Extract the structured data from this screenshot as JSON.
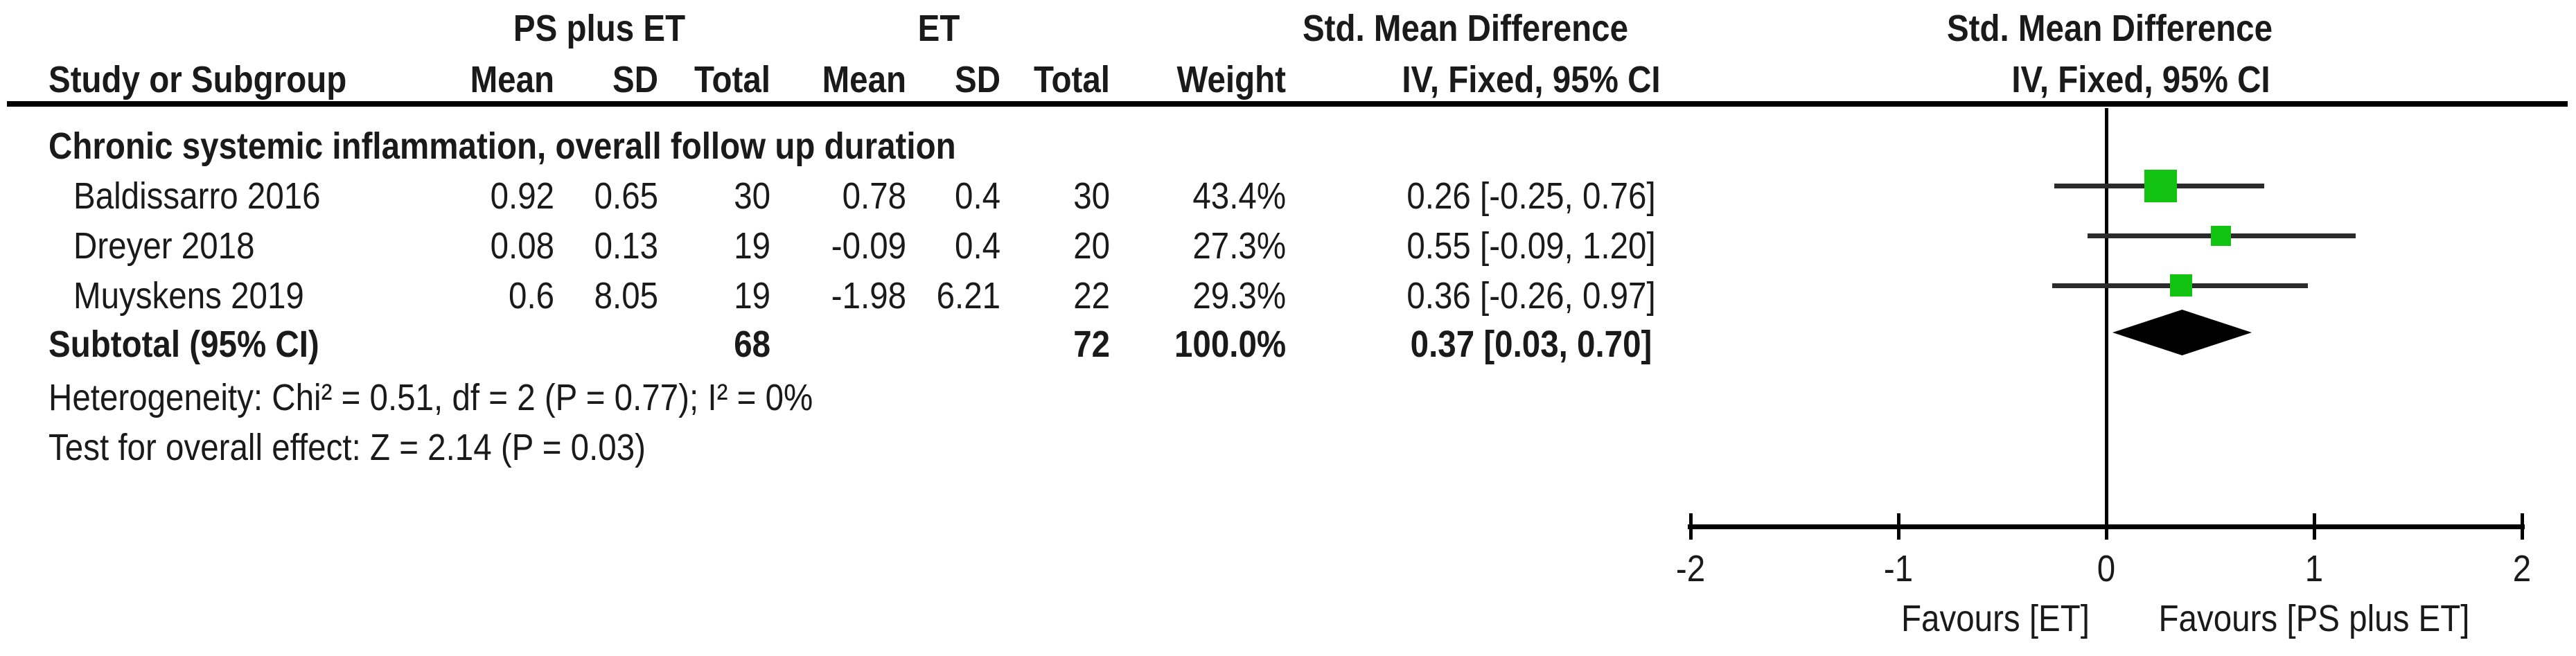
{
  "figure": {
    "group1_header": "PS plus ET",
    "group2_header": "ET",
    "effect_header_table": "Std. Mean Difference",
    "effect_subheader_table": "IV, Fixed, 95% CI",
    "effect_header_plot": "Std. Mean Difference",
    "effect_subheader_plot": "IV, Fixed, 95% CI",
    "columns": {
      "study": "Study or Subgroup",
      "mean1": "Mean",
      "sd1": "SD",
      "total1": "Total",
      "mean2": "Mean",
      "sd2": "SD",
      "total2": "Total",
      "weight": "Weight"
    },
    "subgroup_title": "Chronic systemic inflammation, overall follow up duration",
    "rows": [
      {
        "study": "Baldissarro 2016",
        "mean1": "0.92",
        "sd1": "0.65",
        "total1": "30",
        "mean2": "0.78",
        "sd2": "0.4",
        "total2": "30",
        "weight": "43.4%",
        "ci_text": "0.26 [-0.25, 0.76]"
      },
      {
        "study": "Dreyer 2018",
        "mean1": "0.08",
        "sd1": "0.13",
        "total1": "19",
        "mean2": "-0.09",
        "sd2": "0.4",
        "total2": "20",
        "weight": "27.3%",
        "ci_text": "0.55 [-0.09, 1.20]"
      },
      {
        "study": "Muyskens 2019",
        "mean1": "0.6",
        "sd1": "8.05",
        "total1": "19",
        "mean2": "-1.98",
        "sd2": "6.21",
        "total2": "22",
        "weight": "29.3%",
        "ci_text": "0.36 [-0.26, 0.97]"
      }
    ],
    "subtotal": {
      "label": "Subtotal (95% CI)",
      "total1": "68",
      "total2": "72",
      "weight": "100.0%",
      "ci_text": "0.37 [0.03, 0.70]"
    },
    "heterogeneity": "Heterogeneity: Chi² = 0.51, df = 2 (P = 0.77); I² = 0%",
    "overall_effect": "Test for overall effect: Z = 2.14 (P = 0.03)"
  },
  "chart_data": {
    "type": "forest",
    "title": "Std. Mean Difference",
    "method_label": "IV, Fixed, 95% CI",
    "x_axis": {
      "min": -2,
      "max": 2,
      "ticks": [
        -2,
        -1,
        0,
        1,
        2
      ]
    },
    "favours_left": "Favours [ET]",
    "favours_right": "Favours [PS plus ET]",
    "studies": [
      {
        "name": "Baldissarro 2016",
        "smd": 0.26,
        "ci_low": -0.25,
        "ci_high": 0.76,
        "weight_pct": 43.4
      },
      {
        "name": "Dreyer 2018",
        "smd": 0.55,
        "ci_low": -0.09,
        "ci_high": 1.2,
        "weight_pct": 27.3
      },
      {
        "name": "Muyskens 2019",
        "smd": 0.36,
        "ci_low": -0.26,
        "ci_high": 0.97,
        "weight_pct": 29.3
      }
    ],
    "subtotal": {
      "label": "Subtotal (95% CI)",
      "smd": 0.37,
      "ci_low": 0.03,
      "ci_high": 0.7,
      "weight_pct": 100.0
    },
    "colors": {
      "square": "#12C312",
      "diamond": "#000000",
      "ci_line": "#2B2B2B",
      "axis": "#000000",
      "text": "#1A1A1A"
    }
  }
}
